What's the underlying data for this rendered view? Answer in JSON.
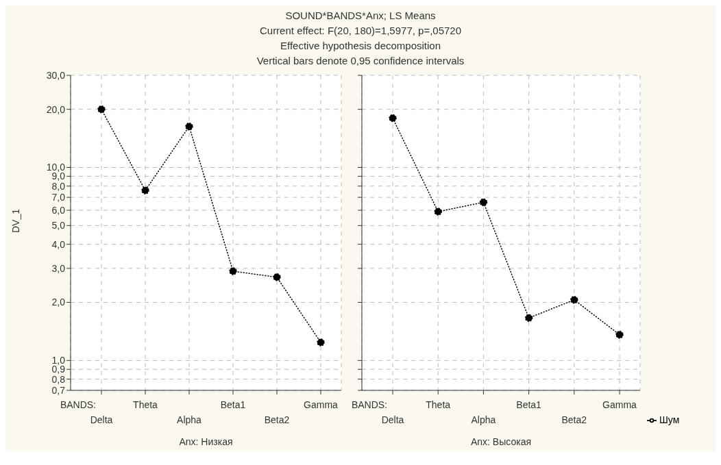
{
  "chart_data": [
    {
      "type": "line",
      "title": "SOUND*BANDS*Anx; LS Means",
      "subtitle": "Current effect: F(20, 180)=1,5977, p=,05720",
      "annotations": [
        "Effective hypothesis decomposition",
        "Vertical bars denote 0,95 confidence intervals",
        "BANDS:"
      ],
      "xlabel": "Anx: Низкая",
      "ylabel": "DV_1",
      "categories": [
        "Delta",
        "Theta",
        "Alpha",
        "Beta1",
        "Beta2",
        "Gamma"
      ],
      "series": [
        {
          "color": "#000000",
          "values": [
            20.0,
            7.6,
            16.3,
            2.9,
            2.7,
            1.24
          ]
        }
      ],
      "log": true,
      "ylim": [
        0.7,
        30
      ],
      "yticks": [
        {
          "value": 0.7,
          "label": "0,7"
        },
        {
          "value": 0.8,
          "label": "0,8"
        },
        {
          "value": 0.9,
          "label": "0,9"
        },
        {
          "value": 1,
          "label": "1,0"
        },
        {
          "value": 2,
          "label": "2,0"
        },
        {
          "value": 3,
          "label": "3,0"
        },
        {
          "value": 4,
          "label": "4,0"
        },
        {
          "value": 5,
          "label": "5,0"
        },
        {
          "value": 6,
          "label": "6,0"
        },
        {
          "value": 7,
          "label": "7,0"
        },
        {
          "value": 8,
          "label": "8,0"
        },
        {
          "value": 9,
          "label": "9,0"
        },
        {
          "value": 10,
          "label": "10,0"
        },
        {
          "value": 20,
          "label": "20,0"
        },
        {
          "value": 30,
          "label": "30,0"
        }
      ],
      "grid": true,
      "marker": "circle",
      "line_style": "dotted"
    },
    {
      "type": "line",
      "annotations": [
        "BANDS:"
      ],
      "xlabel": "Anx: Высокая",
      "categories": [
        "Delta",
        "Theta",
        "Alpha",
        "Beta1",
        "Beta2",
        "Gamma"
      ],
      "series": [
        {
          "name": "Шум",
          "color": "#000000",
          "values": [
            18.0,
            5.9,
            6.6,
            1.66,
            2.06,
            1.36
          ]
        }
      ],
      "log": true,
      "ylim": [
        0.7,
        30
      ],
      "yticks": [
        0.7,
        0.8,
        0.9,
        1,
        2,
        3,
        4,
        5,
        6,
        7,
        8,
        9,
        10,
        20,
        30
      ],
      "tick_labels": "x",
      "grid": true,
      "legend": "bottom right",
      "marker": "circle",
      "line_style": "dotted"
    }
  ]
}
